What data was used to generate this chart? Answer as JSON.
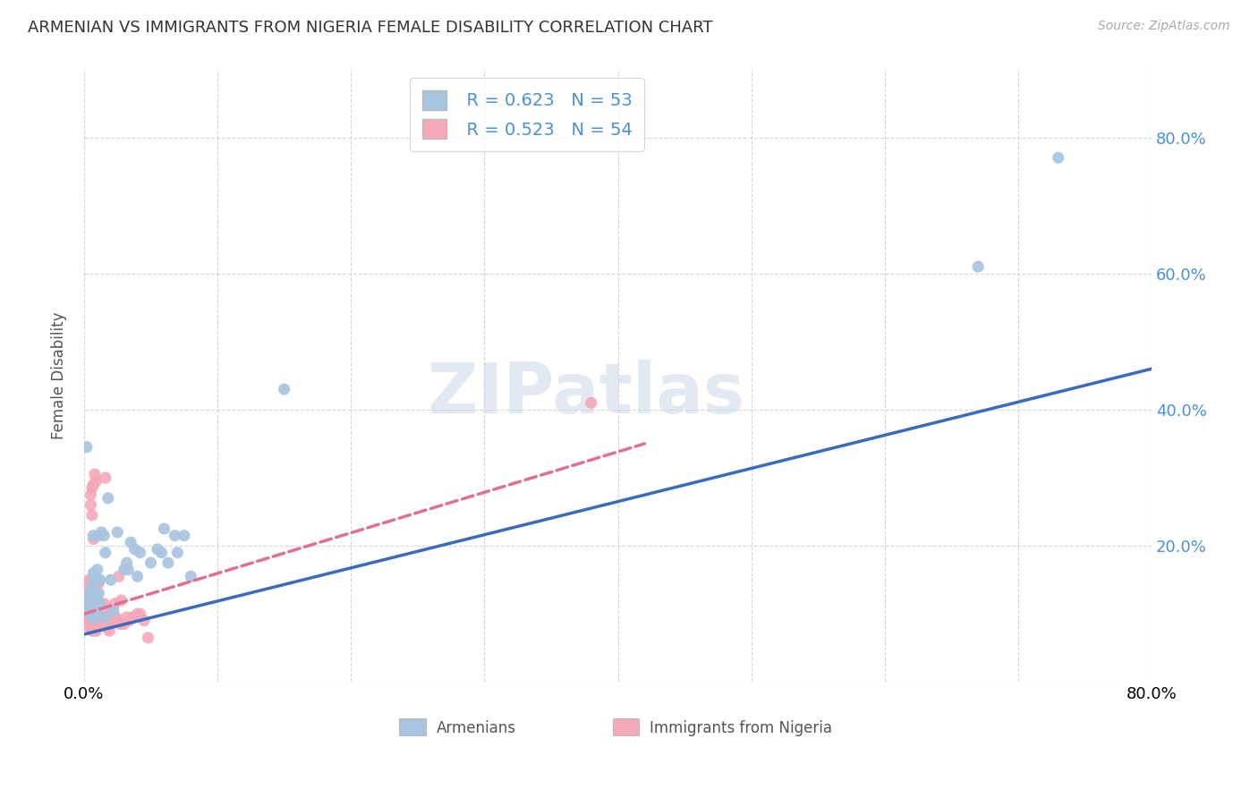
{
  "title": "ARMENIAN VS IMMIGRANTS FROM NIGERIA FEMALE DISABILITY CORRELATION CHART",
  "source": "Source: ZipAtlas.com",
  "ylabel": "Female Disability",
  "xlim": [
    0.0,
    0.8
  ],
  "ylim": [
    0.0,
    0.9
  ],
  "yticks": [
    0.0,
    0.2,
    0.4,
    0.6,
    0.8
  ],
  "xticks": [
    0.0,
    0.1,
    0.2,
    0.3,
    0.4,
    0.5,
    0.6,
    0.7,
    0.8
  ],
  "xtick_labels": [
    "0.0%",
    "",
    "",
    "",
    "",
    "",
    "",
    "",
    "80.0%"
  ],
  "ytick_labels_right": [
    "",
    "20.0%",
    "40.0%",
    "60.0%",
    "80.0%"
  ],
  "background_color": "#ffffff",
  "grid_color": "#cccccc",
  "watermark": "ZIPatlas",
  "armenian_color": "#a8c4e0",
  "nigeria_color": "#f5a8b8",
  "armenian_line_color": "#3a6bbf",
  "nigeria_line_color": "#e07090",
  "legend_R1": "R = 0.623",
  "legend_N1": "N = 53",
  "legend_R2": "R = 0.523",
  "legend_N2": "N = 54",
  "legend_label1": "Armenians",
  "legend_label2": "Immigrants from Nigeria",
  "armenian_x": [
    0.002,
    0.003,
    0.004,
    0.004,
    0.005,
    0.005,
    0.005,
    0.006,
    0.006,
    0.006,
    0.007,
    0.007,
    0.007,
    0.007,
    0.008,
    0.008,
    0.009,
    0.009,
    0.009,
    0.01,
    0.01,
    0.01,
    0.011,
    0.011,
    0.012,
    0.012,
    0.013,
    0.015,
    0.016,
    0.016,
    0.018,
    0.02,
    0.022,
    0.025,
    0.03,
    0.032,
    0.033,
    0.035,
    0.038,
    0.04,
    0.042,
    0.05,
    0.055,
    0.058,
    0.06,
    0.063,
    0.068,
    0.07,
    0.075,
    0.08,
    0.15,
    0.67,
    0.73
  ],
  "armenian_y": [
    0.345,
    0.125,
    0.115,
    0.105,
    0.135,
    0.11,
    0.1,
    0.125,
    0.105,
    0.095,
    0.145,
    0.215,
    0.16,
    0.115,
    0.13,
    0.095,
    0.095,
    0.15,
    0.13,
    0.165,
    0.12,
    0.1,
    0.215,
    0.13,
    0.15,
    0.115,
    0.22,
    0.215,
    0.19,
    0.095,
    0.27,
    0.15,
    0.105,
    0.22,
    0.165,
    0.175,
    0.165,
    0.205,
    0.195,
    0.155,
    0.19,
    0.175,
    0.195,
    0.19,
    0.225,
    0.175,
    0.215,
    0.19,
    0.215,
    0.155,
    0.43,
    0.61,
    0.77
  ],
  "nigeria_x": [
    0.001,
    0.001,
    0.001,
    0.002,
    0.002,
    0.002,
    0.002,
    0.002,
    0.003,
    0.003,
    0.004,
    0.004,
    0.004,
    0.005,
    0.005,
    0.005,
    0.006,
    0.006,
    0.006,
    0.007,
    0.007,
    0.008,
    0.008,
    0.009,
    0.009,
    0.01,
    0.01,
    0.011,
    0.012,
    0.013,
    0.014,
    0.015,
    0.016,
    0.017,
    0.018,
    0.019,
    0.02,
    0.022,
    0.023,
    0.024,
    0.025,
    0.026,
    0.027,
    0.028,
    0.03,
    0.032,
    0.034,
    0.036,
    0.038,
    0.04,
    0.042,
    0.045,
    0.048,
    0.38
  ],
  "nigeria_y": [
    0.135,
    0.12,
    0.11,
    0.135,
    0.125,
    0.115,
    0.1,
    0.09,
    0.145,
    0.09,
    0.15,
    0.13,
    0.08,
    0.275,
    0.26,
    0.08,
    0.285,
    0.245,
    0.075,
    0.29,
    0.21,
    0.305,
    0.075,
    0.295,
    0.075,
    0.09,
    0.085,
    0.145,
    0.085,
    0.095,
    0.1,
    0.115,
    0.3,
    0.08,
    0.1,
    0.075,
    0.085,
    0.1,
    0.115,
    0.095,
    0.09,
    0.155,
    0.085,
    0.12,
    0.085,
    0.095,
    0.09,
    0.095,
    0.095,
    0.1,
    0.1,
    0.09,
    0.065,
    0.41
  ],
  "arm_line_x": [
    0.0,
    0.8
  ],
  "arm_line_y": [
    0.07,
    0.46
  ],
  "nig_line_x": [
    0.0,
    0.42
  ],
  "nig_line_y": [
    0.1,
    0.35
  ]
}
